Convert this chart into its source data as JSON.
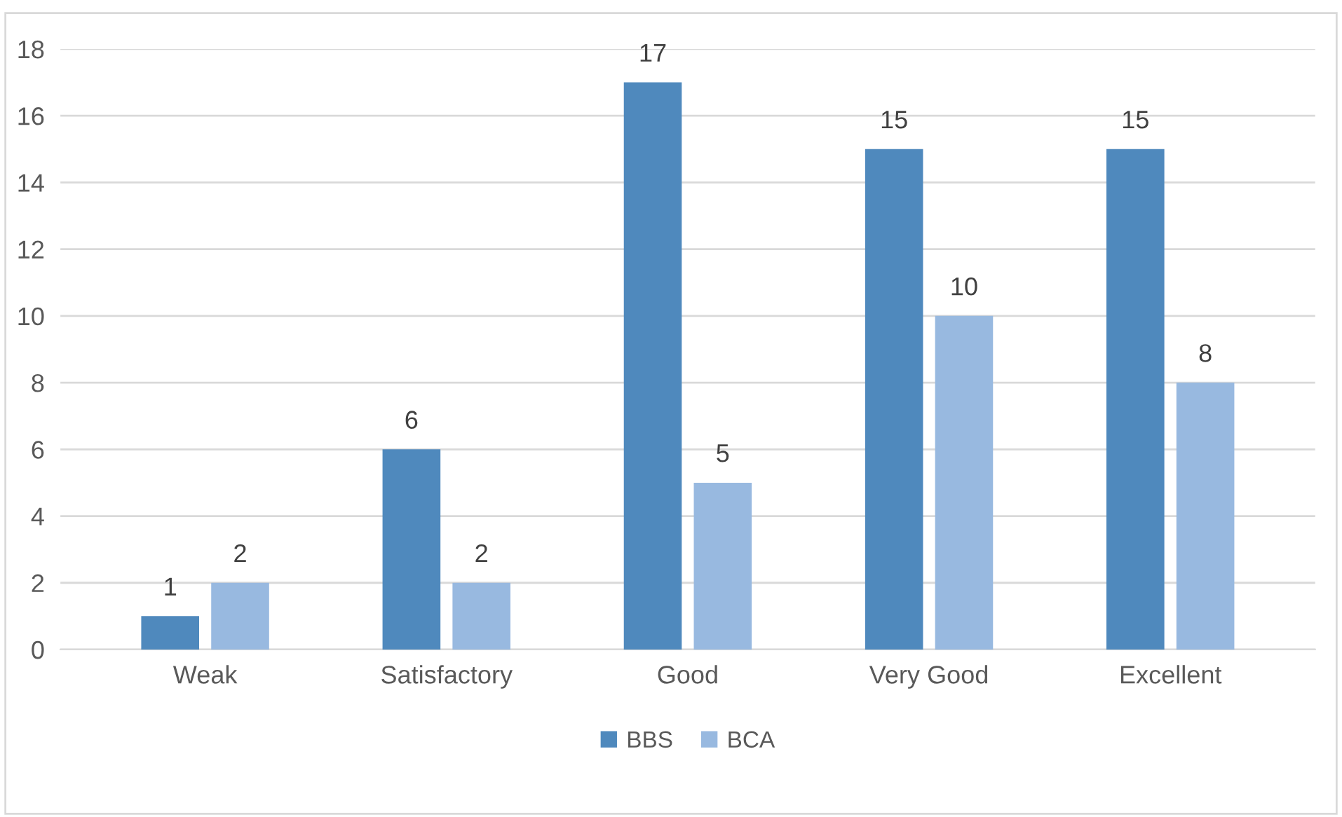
{
  "chart_data": {
    "type": "bar",
    "categories": [
      "Weak",
      "Satisfactory",
      "Good",
      "Very Good",
      "Excellent"
    ],
    "series": [
      {
        "name": "BBS",
        "color": "#4f89bd",
        "values": [
          1,
          6,
          17,
          15,
          15
        ]
      },
      {
        "name": "BCA",
        "color": "#98b9e0",
        "values": [
          2,
          2,
          5,
          10,
          8
        ]
      }
    ],
    "ylim": [
      0,
      18
    ],
    "yticks": [
      0,
      2,
      4,
      6,
      8,
      10,
      12,
      14,
      16,
      18
    ],
    "grid": "y",
    "legend": "bottom",
    "data_labels": true
  }
}
